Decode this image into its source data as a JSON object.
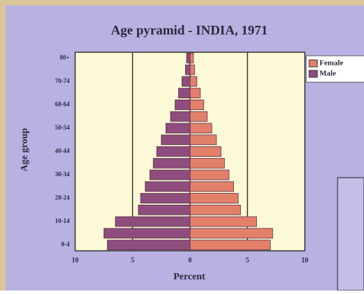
{
  "chart_data": {
    "type": "pyramid",
    "title": "Age pyramid - INDIA, 1971",
    "x_label": "Percent",
    "y_label": "Age group",
    "categories": [
      "0-4",
      null,
      "10-14",
      null,
      "20-24",
      null,
      "30-34",
      null,
      "40-44",
      null,
      "50-54",
      null,
      "60-64",
      null,
      "70-74",
      null,
      "80+"
    ],
    "series": [
      {
        "name": "Female",
        "color": "#e2806a",
        "values": [
          7.0,
          7.2,
          5.8,
          4.4,
          4.2,
          3.8,
          3.4,
          3.0,
          2.7,
          2.3,
          1.9,
          1.5,
          1.2,
          0.9,
          0.6,
          0.4,
          0.3
        ]
      },
      {
        "name": "Male",
        "color": "#8e4d7c",
        "values": [
          -7.2,
          -7.5,
          -6.5,
          -4.5,
          -4.3,
          -3.9,
          -3.5,
          -3.2,
          -2.9,
          -2.5,
          -2.1,
          -1.7,
          -1.3,
          -1.0,
          -0.7,
          -0.4,
          -0.3
        ]
      }
    ],
    "xlim": [
      -10,
      10
    ],
    "xticks": [
      {
        "value": -10,
        "label": "10"
      },
      {
        "value": -5,
        "label": "5"
      },
      0,
      5,
      10
    ],
    "grid": true
  }
}
